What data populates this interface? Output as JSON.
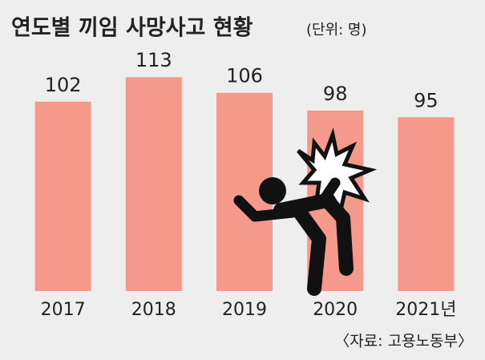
{
  "chart_data": {
    "type": "bar",
    "title": "연도별 끼임 사망사고 현황",
    "subtitle": "(단위: 명)",
    "categories": [
      "2017",
      "2018",
      "2019",
      "2020",
      "2021년"
    ],
    "values": [
      102,
      113,
      106,
      98,
      95
    ],
    "color": "#f4998c",
    "ylim": [
      17,
      130
    ],
    "source": "〈자료: 고용노동부〉"
  }
}
